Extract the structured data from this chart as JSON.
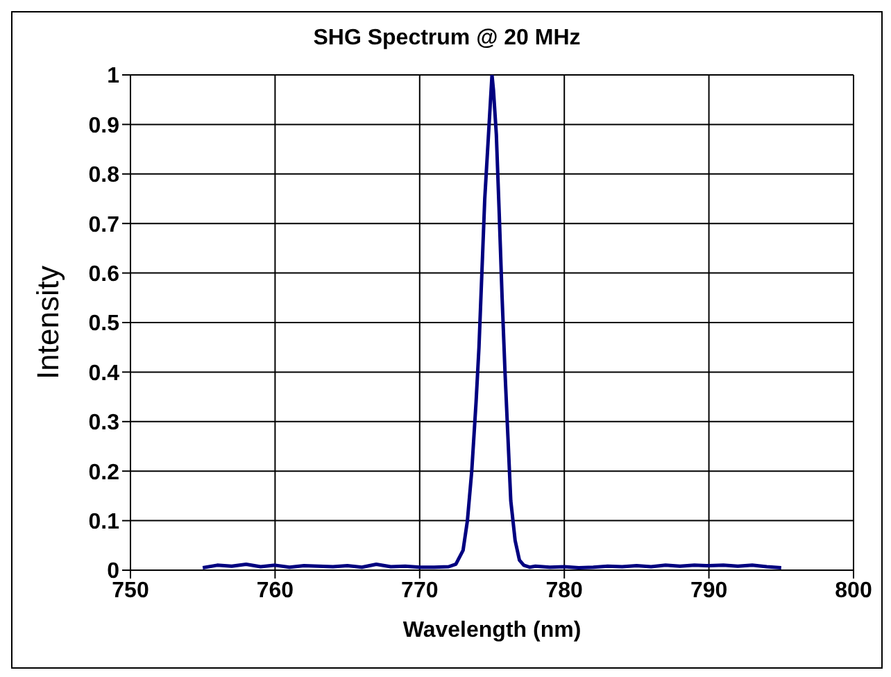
{
  "chart_data": {
    "type": "line",
    "title": "SHG Spectrum @ 20 MHz",
    "xlabel": "Wavelength (nm)",
    "ylabel": "Intensity",
    "series": [
      {
        "color": "#000080",
        "x": [
          755,
          756,
          757,
          758,
          759,
          760,
          761,
          762,
          763,
          764,
          765,
          766,
          767,
          768,
          769,
          770,
          771,
          772,
          772.5,
          773,
          773.3,
          773.6,
          773.9,
          774.1,
          774.3,
          774.5,
          774.7,
          774.9,
          775,
          775.1,
          775.3,
          775.5,
          775.7,
          775.9,
          776.1,
          776.3,
          776.6,
          776.9,
          777.2,
          777.6,
          778,
          779,
          780,
          781,
          782,
          783,
          784,
          785,
          786,
          787,
          788,
          789,
          790,
          791,
          792,
          793,
          794,
          795
        ],
        "values": [
          0.005,
          0.01,
          0.008,
          0.012,
          0.007,
          0.01,
          0.006,
          0.009,
          0.008,
          0.007,
          0.009,
          0.006,
          0.012,
          0.007,
          0.008,
          0.006,
          0.006,
          0.007,
          0.012,
          0.04,
          0.1,
          0.2,
          0.34,
          0.45,
          0.6,
          0.75,
          0.85,
          0.95,
          1,
          0.97,
          0.88,
          0.72,
          0.55,
          0.4,
          0.27,
          0.14,
          0.06,
          0.02,
          0.01,
          0.006,
          0.008,
          0.006,
          0.007,
          0.005,
          0.006,
          0.008,
          0.007,
          0.009,
          0.007,
          0.01,
          0.008,
          0.01,
          0.009,
          0.01,
          0.008,
          0.01,
          0.007,
          0.005
        ]
      }
    ],
    "xlim": [
      750,
      800
    ],
    "xticks": [
      750,
      760,
      770,
      780,
      790,
      800
    ],
    "ylim": [
      0,
      1
    ],
    "yticks": [
      0,
      0.1,
      0.2,
      0.3,
      0.4,
      0.5,
      0.6,
      0.7,
      0.8,
      0.9,
      1
    ],
    "grid": true,
    "legend": false,
    "marker": "none",
    "line_style": "solid"
  }
}
